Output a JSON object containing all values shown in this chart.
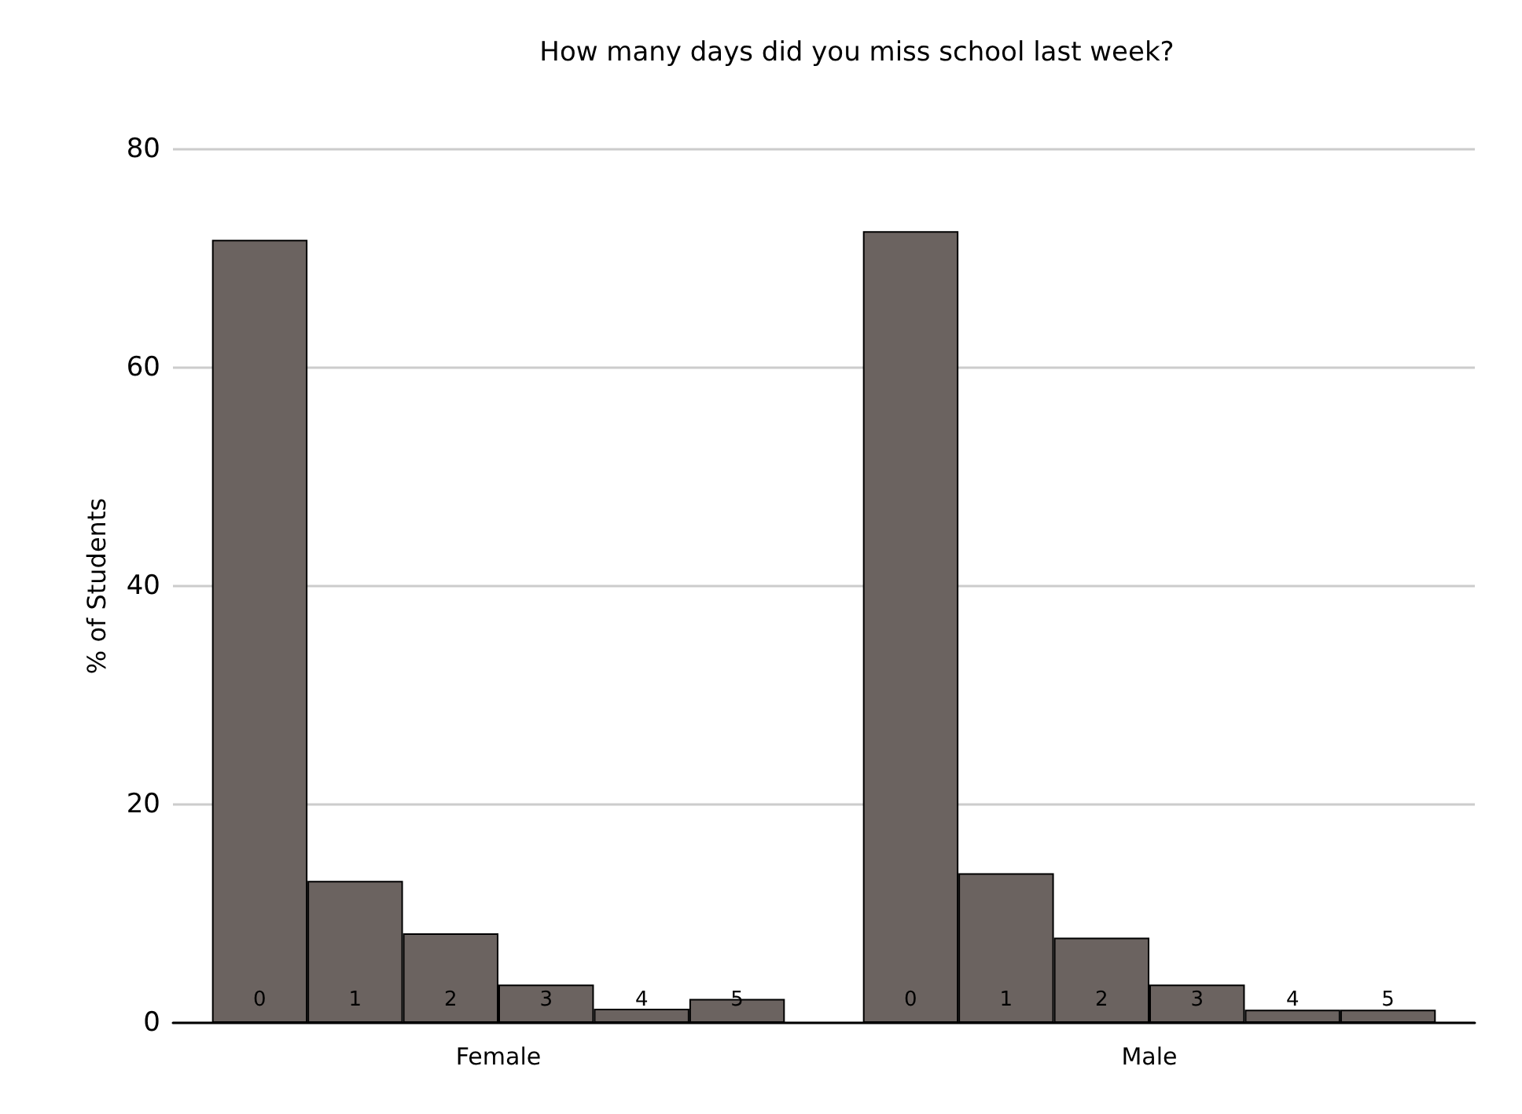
{
  "chart_data": {
    "type": "bar",
    "title": "How many days did you miss school last week?",
    "ylabel": "% of Students",
    "categories": [
      "Female",
      "Male"
    ],
    "series": [
      {
        "name": "0",
        "color": "#6b6360",
        "values": [
          71.7,
          72.5
        ]
      },
      {
        "name": "1",
        "color": "#6b6360",
        "values": [
          13.0,
          13.7
        ]
      },
      {
        "name": "2",
        "color": "#6b6360",
        "values": [
          8.2,
          7.8
        ]
      },
      {
        "name": "3",
        "color": "#6b6360",
        "values": [
          3.5,
          3.5
        ]
      },
      {
        "name": "4",
        "color": "#6b6360",
        "values": [
          1.3,
          1.2
        ]
      },
      {
        "name": "5",
        "color": "#6b6360",
        "values": [
          2.2,
          1.2
        ]
      }
    ],
    "ylim": [
      0,
      80
    ],
    "yticks": [
      0,
      20,
      40,
      60,
      80
    ],
    "grid": "y",
    "legend": false
  }
}
